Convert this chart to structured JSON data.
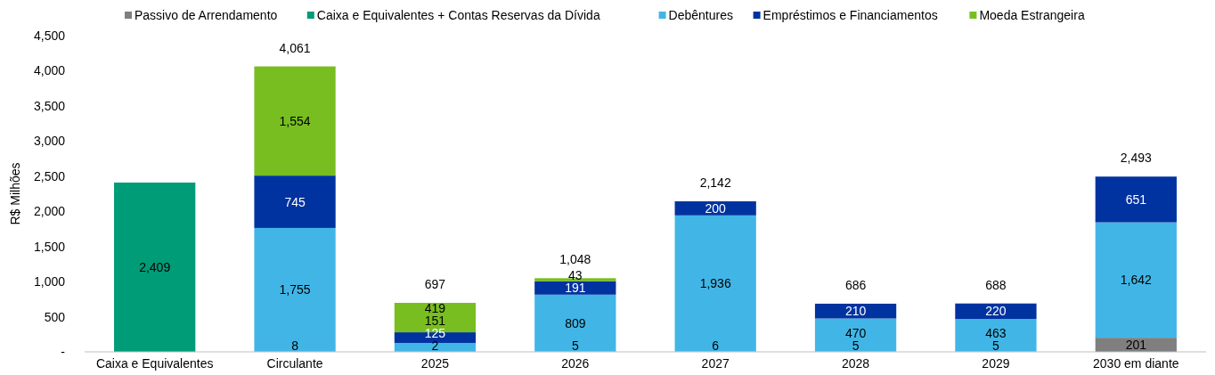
{
  "chart_data": {
    "type": "bar",
    "stacked": true,
    "ylabel": "R$ Milhões",
    "legend": "top",
    "grid": false,
    "categories": [
      "Caixa e Equivalentes",
      "Circulante",
      "2025",
      "2026",
      "2027",
      "2028",
      "2029",
      "2030 em diante"
    ],
    "ylim": [
      0,
      4500
    ],
    "yticks": [
      {
        "value": 0,
        "label": "-"
      },
      {
        "value": 500,
        "label": "500"
      },
      {
        "value": 1000,
        "label": "1,000"
      },
      {
        "value": 1500,
        "label": "1,500"
      },
      {
        "value": 2000,
        "label": "2,000"
      },
      {
        "value": 2500,
        "label": "2,500"
      },
      {
        "value": 3000,
        "label": "3,000"
      },
      {
        "value": 3500,
        "label": "3,500"
      },
      {
        "value": 4000,
        "label": "4,000"
      },
      {
        "value": 4500,
        "label": "4,500"
      }
    ],
    "series": [
      {
        "name": "Passivo de Arrendamento",
        "color": "#7f7f7f",
        "values": [
          null,
          8,
          2,
          5,
          6,
          5,
          5,
          201
        ],
        "value_labels": [
          null,
          "8",
          "2",
          "5",
          "6",
          "5",
          "5",
          "201"
        ]
      },
      {
        "name": "Caixa e Equivalentes + Contas Reservas da Dívida",
        "color": "#009b77",
        "values": [
          2409,
          null,
          null,
          null,
          null,
          null,
          null,
          null
        ],
        "value_labels": [
          "2,409",
          null,
          null,
          null,
          null,
          null,
          null,
          null
        ]
      },
      {
        "name": "Debêntures",
        "color": "#41b6e6",
        "values": [
          null,
          1755,
          125,
          809,
          1936,
          470,
          463,
          1642
        ],
        "value_labels": [
          null,
          "1,755",
          "125",
          "809",
          "1,936",
          "470",
          "463",
          "1,642"
        ]
      },
      {
        "name": "Empréstimos e Financiamentos",
        "color": "#0033a0",
        "values": [
          null,
          745,
          151,
          191,
          200,
          210,
          220,
          651
        ],
        "value_labels": [
          null,
          "745",
          "151",
          "191",
          "200",
          "210",
          "220",
          "651"
        ]
      },
      {
        "name": "Moeda Estrangeira",
        "color": "#78be20",
        "values": [
          null,
          1554,
          419,
          43,
          null,
          null,
          null,
          null
        ],
        "value_labels": [
          null,
          "1,554",
          "419",
          "43",
          null,
          null,
          null,
          null
        ]
      }
    ],
    "totals": [
      null,
      "4,061",
      "697",
      "1,048",
      "2,142",
      "686",
      "688",
      "2,493"
    ]
  }
}
